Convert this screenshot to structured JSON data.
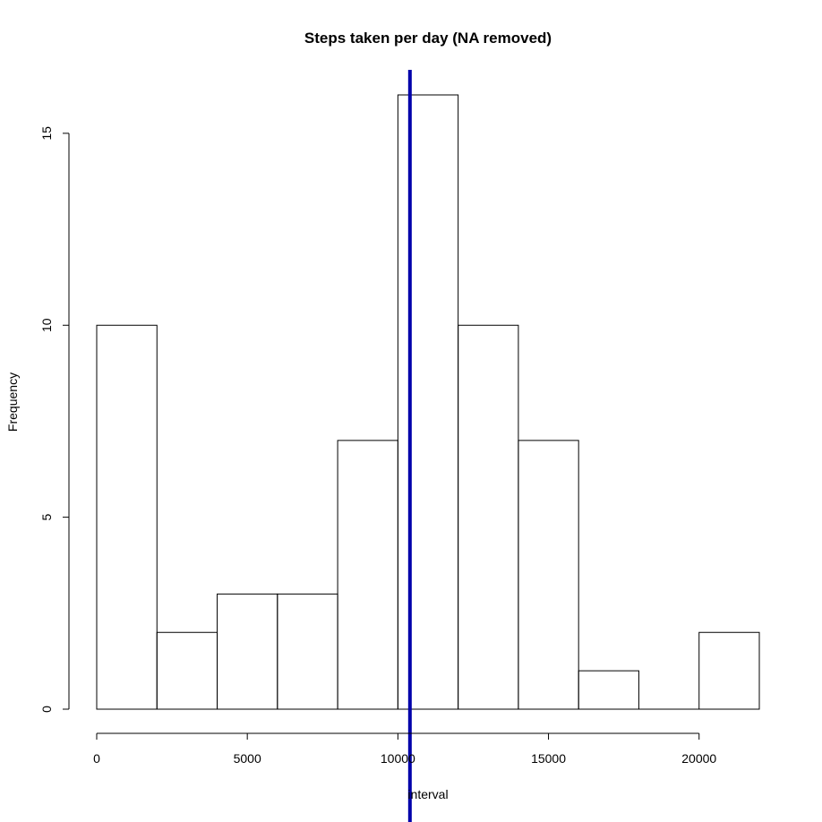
{
  "chart_data": {
    "type": "bar",
    "title": "Steps taken per day (NA removed)",
    "xlabel": "interval",
    "ylabel": "Frequency",
    "bins": [
      {
        "from": 0,
        "to": 2000,
        "count": 10
      },
      {
        "from": 2000,
        "to": 4000,
        "count": 2
      },
      {
        "from": 4000,
        "to": 6000,
        "count": 3
      },
      {
        "from": 6000,
        "to": 8000,
        "count": 3
      },
      {
        "from": 8000,
        "to": 10000,
        "count": 7
      },
      {
        "from": 10000,
        "to": 12000,
        "count": 16
      },
      {
        "from": 12000,
        "to": 14000,
        "count": 10
      },
      {
        "from": 14000,
        "to": 16000,
        "count": 7
      },
      {
        "from": 16000,
        "to": 18000,
        "count": 1
      },
      {
        "from": 18000,
        "to": 20000,
        "count": 0
      },
      {
        "from": 20000,
        "to": 22000,
        "count": 2
      }
    ],
    "x_ticks": [
      0,
      5000,
      10000,
      15000,
      20000
    ],
    "y_ticks": [
      0,
      5,
      10,
      15
    ],
    "xlim": [
      0,
      22000
    ],
    "ylim": [
      0,
      16
    ],
    "reference_line": {
      "x": 10400,
      "color": "#0000aa"
    },
    "bar_fill": "#ffffff",
    "bar_stroke": "#000000"
  }
}
